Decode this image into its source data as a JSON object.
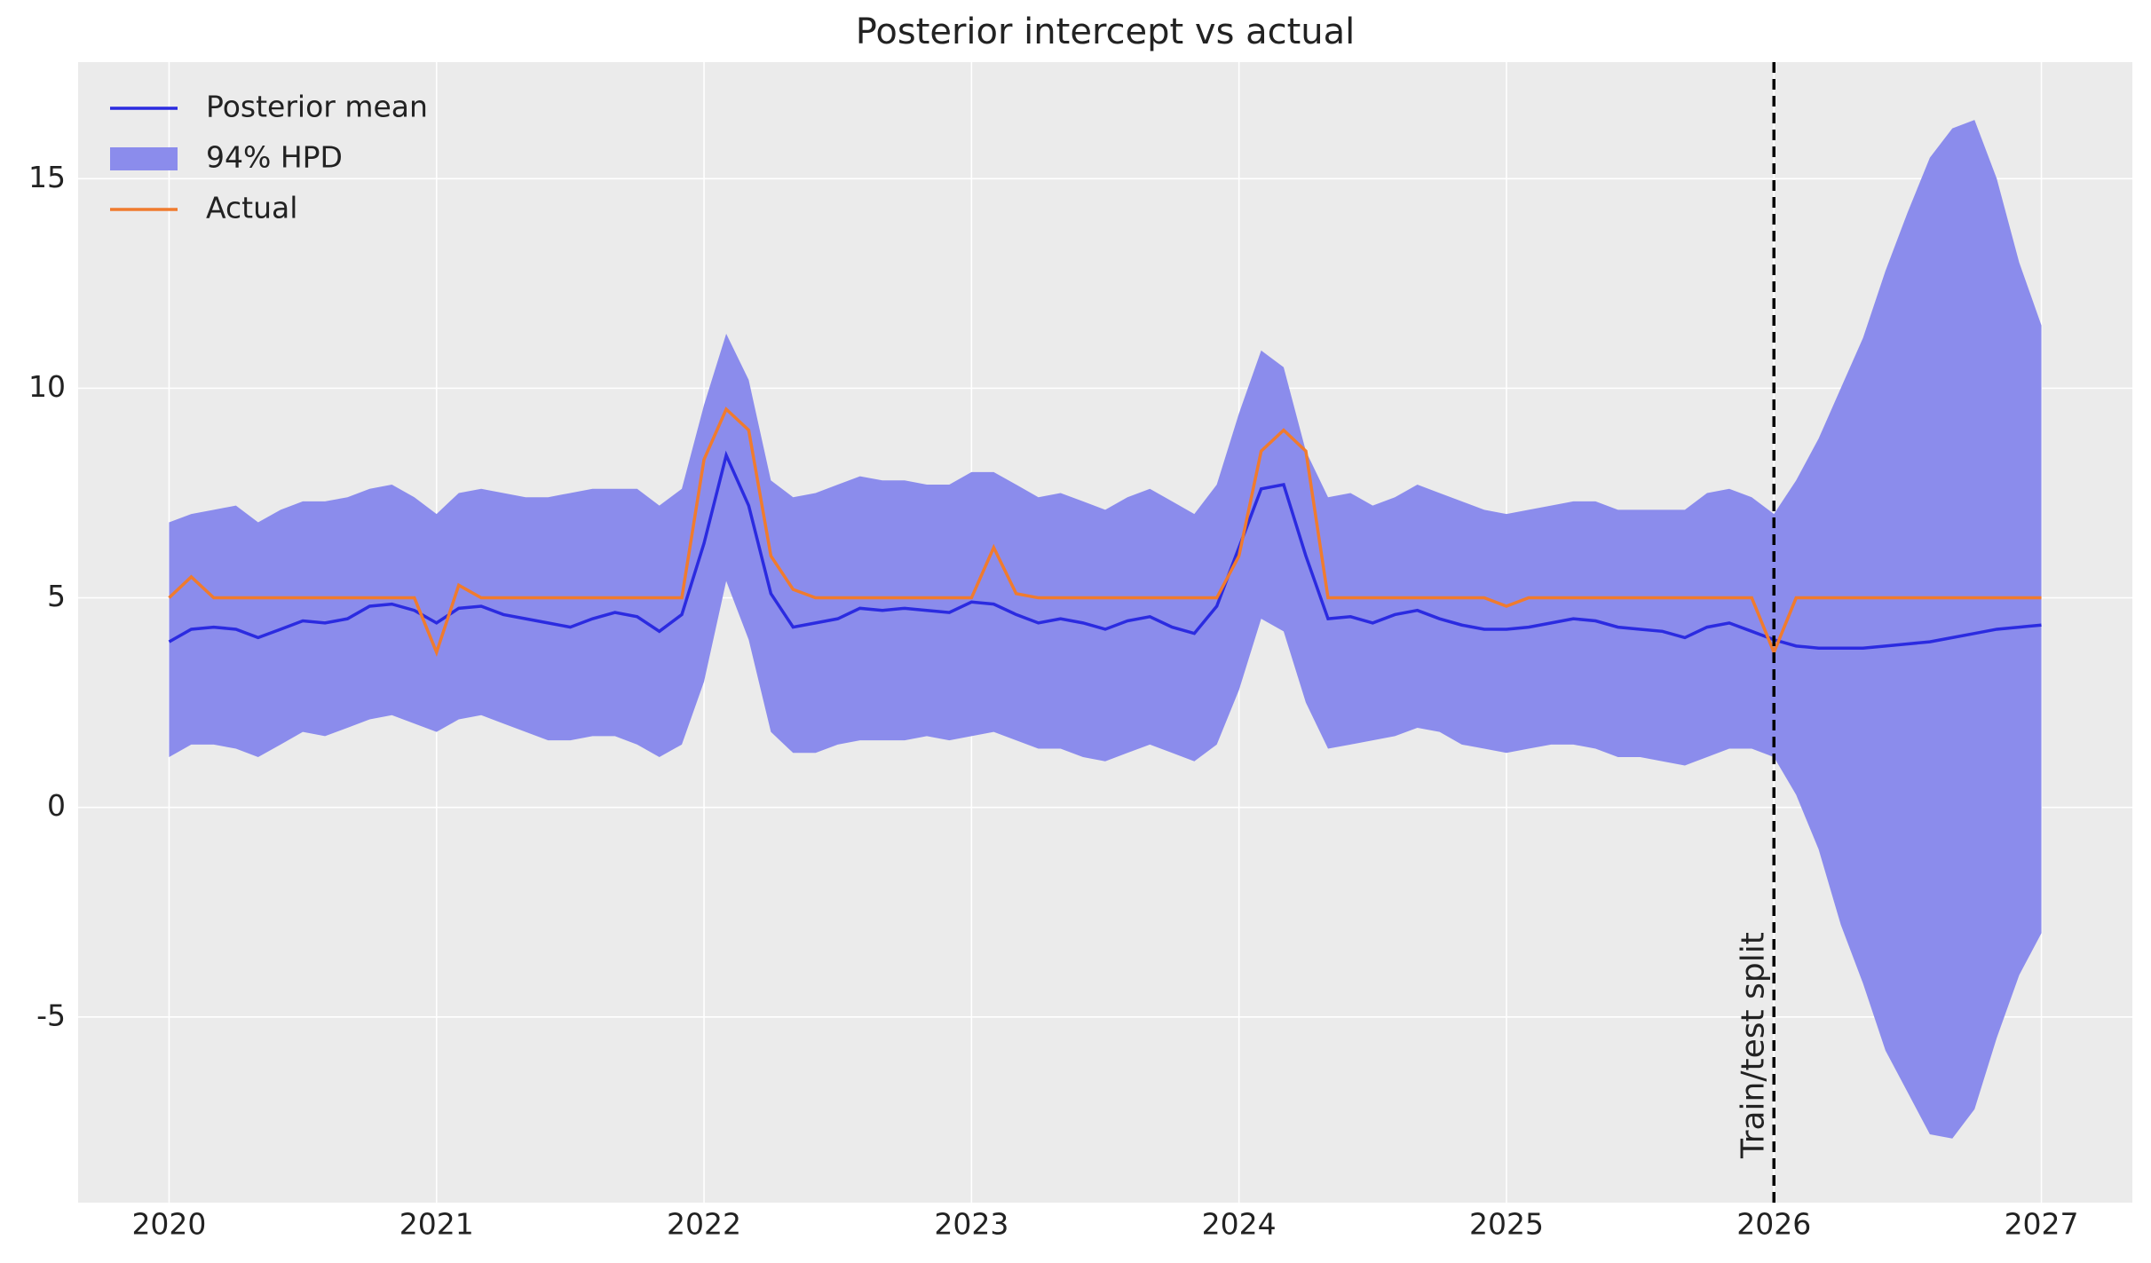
{
  "chart_data": {
    "type": "line",
    "title": "Posterior intercept vs actual",
    "grid": true,
    "legend": "upper left",
    "xlim": [
      2019.66,
      2027.34
    ],
    "xticks": [
      2020,
      2021,
      2022,
      2023,
      2024,
      2025,
      2026,
      2027
    ],
    "ylim": [
      -9.43,
      17.78
    ],
    "yticks": [
      -5,
      0,
      5,
      10,
      15
    ],
    "vline": {
      "x": 2026,
      "label": "Train/test split",
      "color": "#000000"
    },
    "x": [
      2020,
      2020.083,
      2020.167,
      2020.25,
      2020.333,
      2020.417,
      2020.5,
      2020.583,
      2020.667,
      2020.75,
      2020.833,
      2020.917,
      2021,
      2021.083,
      2021.167,
      2021.25,
      2021.333,
      2021.417,
      2021.5,
      2021.583,
      2021.667,
      2021.75,
      2021.833,
      2021.917,
      2022,
      2022.083,
      2022.167,
      2022.25,
      2022.333,
      2022.417,
      2022.5,
      2022.583,
      2022.667,
      2022.75,
      2022.833,
      2022.917,
      2023,
      2023.083,
      2023.167,
      2023.25,
      2023.333,
      2023.417,
      2023.5,
      2023.583,
      2023.667,
      2023.75,
      2023.833,
      2023.917,
      2024,
      2024.083,
      2024.167,
      2024.25,
      2024.333,
      2024.417,
      2024.5,
      2024.583,
      2024.667,
      2024.75,
      2024.833,
      2024.917,
      2025,
      2025.083,
      2025.167,
      2025.25,
      2025.333,
      2025.417,
      2025.5,
      2025.583,
      2025.667,
      2025.75,
      2025.833,
      2025.917,
      2026,
      2026.083,
      2026.167,
      2026.25,
      2026.333,
      2026.417,
      2026.5,
      2026.583,
      2026.667,
      2026.75,
      2026.833,
      2026.917,
      2027
    ],
    "series": [
      {
        "name": "Posterior mean",
        "color": "#2b2be0",
        "values": [
          3.95,
          4.25,
          4.3,
          4.25,
          4.05,
          4.25,
          4.45,
          4.4,
          4.5,
          4.8,
          4.85,
          4.7,
          4.4,
          4.75,
          4.8,
          4.6,
          4.5,
          4.4,
          4.3,
          4.5,
          4.65,
          4.55,
          4.2,
          4.6,
          6.3,
          8.4,
          7.2,
          5.1,
          4.3,
          4.4,
          4.5,
          4.75,
          4.7,
          4.75,
          4.7,
          4.65,
          4.9,
          4.85,
          4.6,
          4.4,
          4.5,
          4.4,
          4.25,
          4.45,
          4.55,
          4.3,
          4.15,
          4.8,
          6.2,
          7.6,
          7.7,
          6.0,
          4.5,
          4.55,
          4.4,
          4.6,
          4.7,
          4.5,
          4.35,
          4.25,
          4.25,
          4.3,
          4.4,
          4.5,
          4.45,
          4.3,
          4.25,
          4.2,
          4.05,
          4.3,
          4.4,
          4.2,
          4.0,
          3.85,
          3.8,
          3.8,
          3.8,
          3.85,
          3.9,
          3.95,
          4.05,
          4.15,
          4.25,
          4.3,
          4.35
        ]
      },
      {
        "name": "94% HPD",
        "color": "#8b8cec",
        "upper": [
          6.8,
          7.0,
          7.1,
          7.2,
          6.8,
          7.1,
          7.3,
          7.3,
          7.4,
          7.6,
          7.7,
          7.4,
          7.0,
          7.5,
          7.6,
          7.5,
          7.4,
          7.4,
          7.5,
          7.6,
          7.6,
          7.6,
          7.2,
          7.6,
          9.6,
          11.3,
          10.2,
          7.8,
          7.4,
          7.5,
          7.7,
          7.9,
          7.8,
          7.8,
          7.7,
          7.7,
          8.0,
          8.0,
          7.7,
          7.4,
          7.5,
          7.3,
          7.1,
          7.4,
          7.6,
          7.3,
          7.0,
          7.7,
          9.4,
          10.9,
          10.5,
          8.5,
          7.4,
          7.5,
          7.2,
          7.4,
          7.7,
          7.5,
          7.3,
          7.1,
          7.0,
          7.1,
          7.2,
          7.3,
          7.3,
          7.1,
          7.1,
          7.1,
          7.1,
          7.5,
          7.6,
          7.4,
          7.0,
          7.8,
          8.8,
          10.0,
          11.2,
          12.8,
          14.2,
          15.5,
          16.2,
          16.4,
          15.0,
          13.0,
          11.5
        ],
        "lower": [
          1.2,
          1.5,
          1.5,
          1.4,
          1.2,
          1.5,
          1.8,
          1.7,
          1.9,
          2.1,
          2.2,
          2.0,
          1.8,
          2.1,
          2.2,
          2.0,
          1.8,
          1.6,
          1.6,
          1.7,
          1.7,
          1.5,
          1.2,
          1.5,
          3.0,
          5.4,
          4.0,
          1.8,
          1.3,
          1.3,
          1.5,
          1.6,
          1.6,
          1.6,
          1.7,
          1.6,
          1.7,
          1.8,
          1.6,
          1.4,
          1.4,
          1.2,
          1.1,
          1.3,
          1.5,
          1.3,
          1.1,
          1.5,
          2.8,
          4.5,
          4.2,
          2.5,
          1.4,
          1.5,
          1.6,
          1.7,
          1.9,
          1.8,
          1.5,
          1.4,
          1.3,
          1.4,
          1.5,
          1.5,
          1.4,
          1.2,
          1.2,
          1.1,
          1.0,
          1.2,
          1.4,
          1.4,
          1.2,
          0.3,
          -1.0,
          -2.8,
          -4.2,
          -5.8,
          -6.8,
          -7.8,
          -7.9,
          -7.2,
          -5.5,
          -4.0,
          -3.0
        ]
      },
      {
        "name": "Actual",
        "color": "#f07b2e",
        "values": [
          5,
          5.5,
          5,
          5,
          5,
          5,
          5,
          5,
          5,
          5,
          5,
          5,
          3.7,
          5.3,
          5,
          5,
          5,
          5,
          5,
          5,
          5,
          5,
          5,
          5,
          8.3,
          9.5,
          9.0,
          6.0,
          5.2,
          5,
          5,
          5,
          5,
          5,
          5,
          5,
          5.0,
          6.2,
          5.1,
          5,
          5,
          5,
          5,
          5,
          5,
          5,
          5,
          5,
          6.0,
          8.5,
          9.0,
          8.5,
          5.0,
          5,
          5,
          5,
          5,
          5,
          5,
          5,
          4.8,
          5,
          5,
          5,
          5,
          5,
          5,
          5,
          5,
          5,
          5,
          5,
          3.7,
          5,
          5,
          5,
          5,
          5,
          5,
          5,
          5,
          5,
          5,
          5,
          5
        ]
      }
    ]
  }
}
